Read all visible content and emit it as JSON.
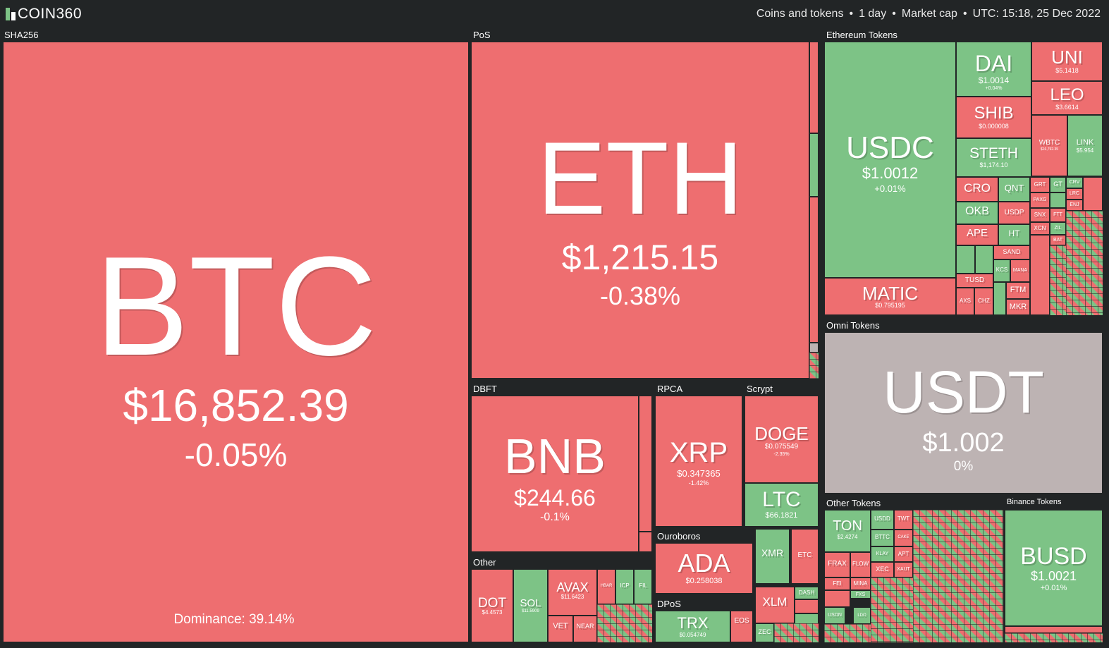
{
  "app": {
    "logo": "COIN360"
  },
  "header": {
    "view": "Coins and tokens",
    "period": "1 day",
    "metric": "Market cap",
    "timestamp": "UTC: 15:18, 25 Dec 2022"
  },
  "groups": {
    "sha256": "SHA256",
    "pos": "PoS",
    "eth_tokens": "Ethereum Tokens",
    "omni": "Omni Tokens",
    "dbft": "DBFT",
    "rpca": "RPCA",
    "scrypt": "Scrypt",
    "ouroboros": "Ouroboros",
    "dpos": "DPoS",
    "other": "Other",
    "other_tokens": "Other Tokens",
    "binance_tokens": "Binance Tokens"
  },
  "coins": {
    "btc": {
      "sym": "BTC",
      "price": "$16,852.39",
      "chg": "-0.05%",
      "dominance": "Dominance: 39.14%"
    },
    "eth": {
      "sym": "ETH",
      "price": "$1,215.15",
      "chg": "-0.38%"
    },
    "usdc": {
      "sym": "USDC",
      "price": "$1.0012",
      "chg": "+0.01%"
    },
    "dai": {
      "sym": "DAI",
      "price": "$1.0014",
      "chg": "+0.04%"
    },
    "uni": {
      "sym": "UNI",
      "price": "$5.1418"
    },
    "leo": {
      "sym": "LEO",
      "price": "$3.6614"
    },
    "shib": {
      "sym": "SHIB",
      "price": "$0.000008"
    },
    "steth": {
      "sym": "STETH",
      "price": "$1,174.10"
    },
    "wbtc": {
      "sym": "WBTC",
      "price": "$16,792.35"
    },
    "link": {
      "sym": "LINK",
      "price": "$5.954"
    },
    "matic": {
      "sym": "MATIC",
      "price": "$0.795195"
    },
    "usdt": {
      "sym": "USDT",
      "price": "$1.002",
      "chg": "0%"
    },
    "bnb": {
      "sym": "BNB",
      "price": "$244.66",
      "chg": "-0.1%"
    },
    "xrp": {
      "sym": "XRP",
      "price": "$0.347365",
      "chg": "-1.42%"
    },
    "doge": {
      "sym": "DOGE",
      "price": "$0.075549",
      "chg": "-2.35%"
    },
    "ltc": {
      "sym": "LTC",
      "price": "$66.1821"
    },
    "ada": {
      "sym": "ADA",
      "price": "$0.258038"
    },
    "xmr": {
      "sym": "XMR"
    },
    "etc": {
      "sym": "ETC"
    },
    "xlm": {
      "sym": "XLM"
    },
    "dash": {
      "sym": "DASH"
    },
    "zec": {
      "sym": "ZEC"
    },
    "trx": {
      "sym": "TRX",
      "price": "$0.054749"
    },
    "eos": {
      "sym": "EOS"
    },
    "dot": {
      "sym": "DOT",
      "price": "$4.4573"
    },
    "sol": {
      "sym": "SOL",
      "price": "$11.5909"
    },
    "avax": {
      "sym": "AVAX",
      "price": "$11.6423"
    },
    "vet": {
      "sym": "VET"
    },
    "near": {
      "sym": "NEAR"
    },
    "hbar": {
      "sym": "HBAR"
    },
    "icp": {
      "sym": "ICP"
    },
    "fil": {
      "sym": "FIL"
    },
    "ton": {
      "sym": "TON",
      "price": "$2.4274"
    },
    "busd": {
      "sym": "BUSD",
      "price": "$1.0021",
      "chg": "+0.01%"
    }
  },
  "small_eth": [
    "CRO",
    "QNT",
    "OKB",
    "USDP",
    "APE",
    "HT",
    "GRT",
    "GT",
    "CRV",
    "LRC",
    "PAXG",
    "ENJ",
    "SNX",
    "FTT",
    "XCN",
    "ZIL",
    "BAT",
    "SAND",
    "TUSD",
    "KCS",
    "MANA",
    "FTM",
    "MKR",
    "AXS",
    "CHZ"
  ],
  "small_other": [
    "USDD",
    "TWT",
    "BTTC",
    "CAKE",
    "KLAY",
    "APT",
    "FRAX",
    "FLOW",
    "XEC",
    "XAUT",
    "FEI",
    "MINA",
    "FXS",
    "USDN",
    "LDO"
  ],
  "colors": {
    "red": "#ee6e70",
    "green": "#7dc386",
    "grey": "#bdb3b3",
    "bg": "#222526"
  }
}
